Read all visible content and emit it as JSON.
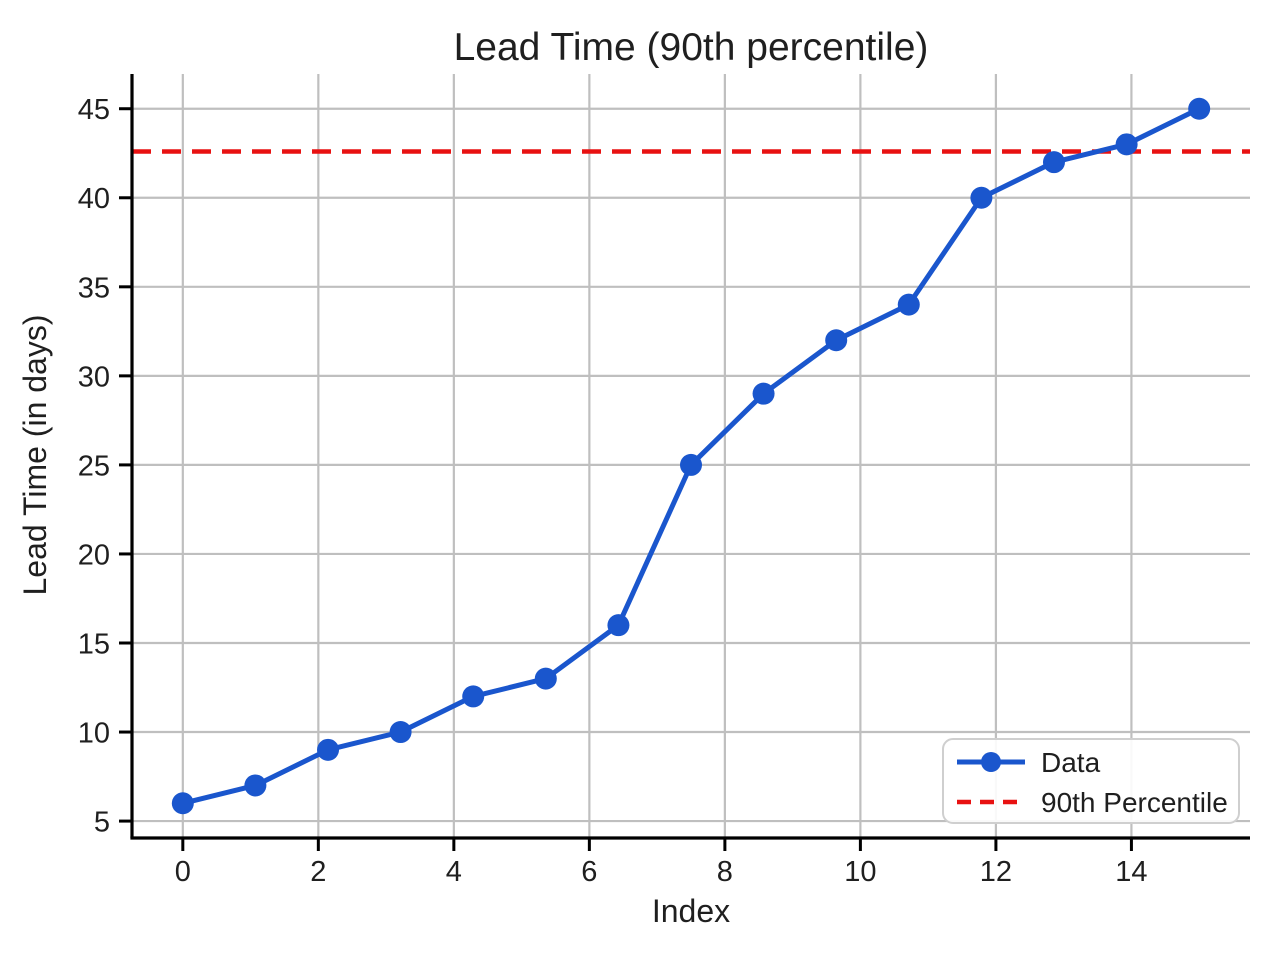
{
  "chart_data": {
    "type": "line",
    "title": "Lead Time (90th percentile)",
    "xlabel": "Index",
    "ylabel": "Lead Time (in days)",
    "x": [
      0,
      1.071,
      2.143,
      3.214,
      4.286,
      5.357,
      6.429,
      7.5,
      8.571,
      9.643,
      10.714,
      11.786,
      12.857,
      13.929,
      15
    ],
    "series": [
      {
        "name": "Data",
        "values": [
          6,
          7,
          9,
          10,
          12,
          13,
          16,
          25,
          29,
          32,
          34,
          40,
          42,
          43,
          45
        ]
      }
    ],
    "percentile": {
      "label": "90th Percentile",
      "value": 42.6
    },
    "xlim": [
      -0.75,
      15.75
    ],
    "ylim": [
      4.05,
      46.95
    ],
    "xticks": [
      0,
      2,
      4,
      6,
      8,
      10,
      12,
      14
    ],
    "yticks": [
      5,
      10,
      15,
      20,
      25,
      30,
      35,
      40,
      45
    ],
    "grid": true,
    "legend_position": "lower right",
    "colors": {
      "data": "#1a56cd",
      "percentile": "#e81111",
      "grid": "#bfbfbf",
      "axis": "#000000",
      "text": "#1f1f1f"
    }
  }
}
